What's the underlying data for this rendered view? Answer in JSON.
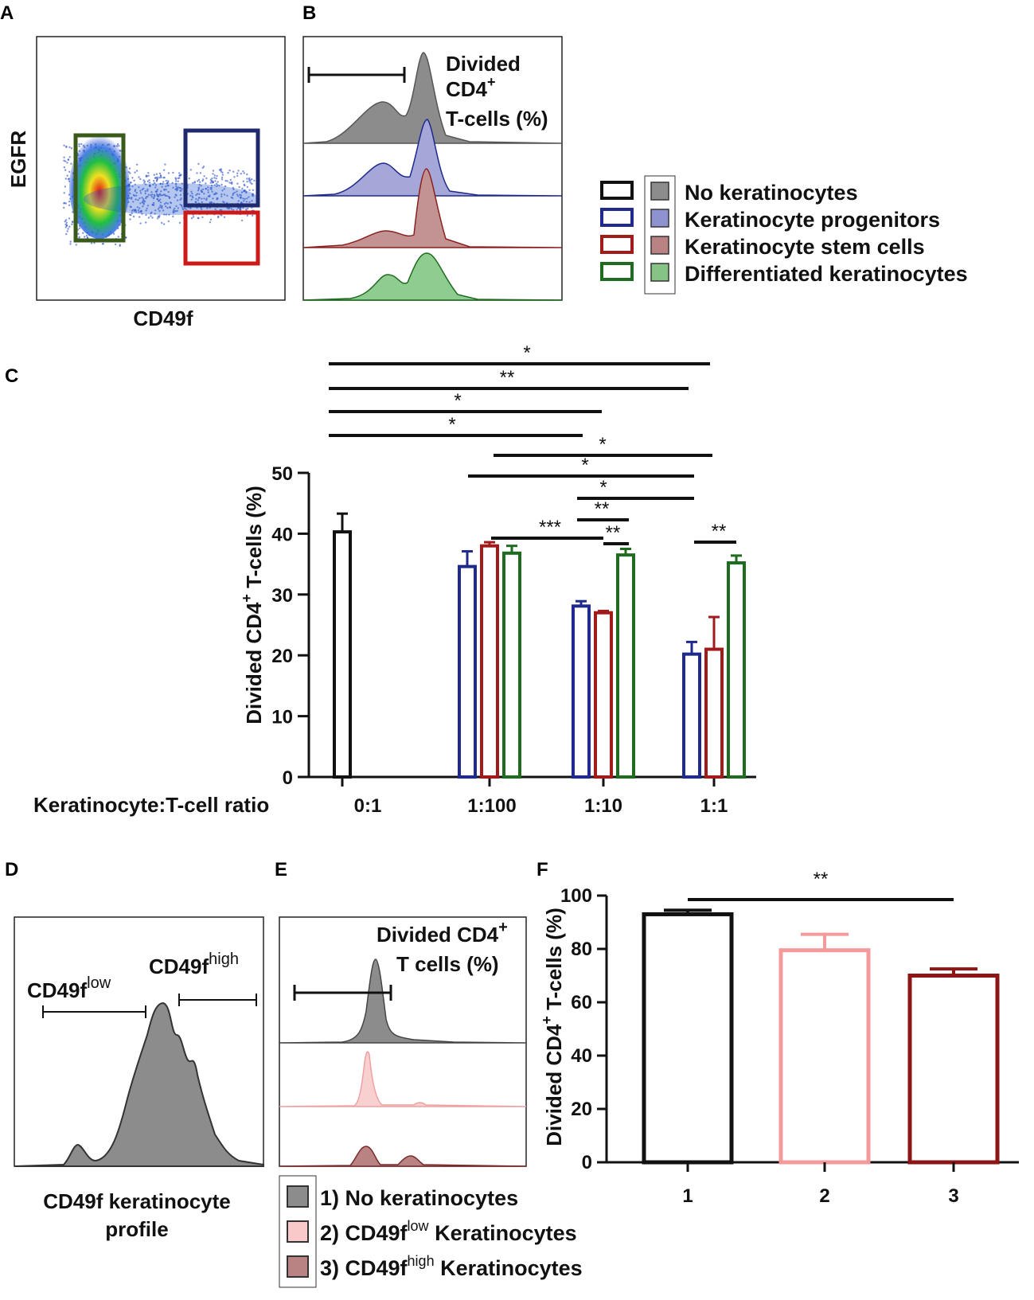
{
  "panels": {
    "a": "A",
    "b": "B",
    "c": "C",
    "d": "D",
    "e": "E",
    "f": "F"
  },
  "panel_a": {
    "y_label": "EGFR",
    "x_label": "CD49f"
  },
  "panel_b": {
    "gate_label_line1": "Divided",
    "gate_label_line2": "CD4",
    "gate_label_line2_sup": "+",
    "gate_label_line3": "T-cells (%)"
  },
  "legend_top": [
    {
      "label": "No keratinocytes",
      "color": "#111111",
      "fill": "#8c8c8c"
    },
    {
      "label": "Keratinocyte progenitors",
      "color": "#1f2a8c",
      "fill": "#8e92cf"
    },
    {
      "label": "Keratinocyte stem cells",
      "color": "#a11b1b",
      "fill": "#b98383"
    },
    {
      "label": "Differentiated keratinocytes",
      "color": "#1f6b1f",
      "fill": "#85c485"
    }
  ],
  "panel_c": {
    "ylabel_pre": "Divided CD4",
    "ylabel_sup": "+",
    "ylabel_post": " T-cells (%)",
    "xlabel": "Keratinocyte:T-cell ratio"
  },
  "panel_d": {
    "low_label": "CD49f",
    "low_sup": "low",
    "high_label": "CD49f",
    "high_sup": "high",
    "caption_line1": "CD49f keratinocyte",
    "caption_line2": "profile"
  },
  "panel_e": {
    "gate_line1": "Divided CD4",
    "gate_sup": "+",
    "gate_line2": "T cells (%)"
  },
  "legend_bottom": [
    {
      "num": "1)",
      "label": "No keratinocytes",
      "sup": "",
      "tail": "",
      "fill": "#8c8c8c"
    },
    {
      "num": "2)",
      "label": "CD49f",
      "sup": "low",
      "tail": " Keratinocytes",
      "fill": "#f9c9c9"
    },
    {
      "num": "3)",
      "label": "CD49f",
      "sup": "high",
      "tail": " Keratinocytes",
      "fill": "#b98383"
    }
  ],
  "panel_f": {
    "ylabel_pre": "Divided CD4",
    "ylabel_sup": "+",
    "ylabel_post": " T-cells (%)"
  },
  "chart_data": [
    {
      "type": "bar",
      "title": "",
      "xlabel": "Keratinocyte:T-cell ratio",
      "ylabel": "Divided CD4+ T-cells (%)",
      "ylim": [
        0,
        50
      ],
      "yticks": [
        0,
        10,
        20,
        30,
        40,
        50
      ],
      "categories": [
        "0:1",
        "1:100",
        "1:10",
        "1:1"
      ],
      "series": [
        {
          "name": "No keratinocytes",
          "color": "#111111",
          "values": [
            40.3,
            null,
            null,
            null
          ],
          "errors": [
            3.0,
            null,
            null,
            null
          ]
        },
        {
          "name": "Keratinocyte progenitors",
          "color": "#1f2a8c",
          "values": [
            null,
            34.6,
            28.1,
            20.2
          ],
          "errors": [
            null,
            2.5,
            0.8,
            2.0
          ]
        },
        {
          "name": "Keratinocyte stem cells",
          "color": "#a11b1b",
          "values": [
            null,
            38.0,
            27.0,
            21.0
          ],
          "errors": [
            null,
            0.6,
            0.3,
            5.3
          ]
        },
        {
          "name": "Differentiated keratinocytes",
          "color": "#1f6b1f",
          "values": [
            null,
            36.8,
            36.5,
            35.2
          ],
          "errors": [
            null,
            1.2,
            1.0,
            1.2
          ]
        }
      ],
      "significance": [
        {
          "label": "*"
        },
        {
          "label": "**"
        },
        {
          "label": "*"
        },
        {
          "label": "*"
        },
        {
          "label": "*"
        },
        {
          "label": "*"
        },
        {
          "label": "*"
        },
        {
          "label": "**"
        },
        {
          "label": "***"
        },
        {
          "label": "**"
        },
        {
          "label": "**"
        }
      ]
    },
    {
      "type": "bar",
      "title": "",
      "xlabel": "",
      "ylabel": "Divided CD4+ T-cells (%)",
      "ylim": [
        0,
        100
      ],
      "yticks": [
        0,
        20,
        40,
        60,
        80,
        100
      ],
      "categories": [
        "1",
        "2",
        "3"
      ],
      "values": [
        93,
        79.5,
        70
      ],
      "errors": [
        1.5,
        6,
        2.5
      ],
      "colors": [
        "#111111",
        "#f49a9a",
        "#8e1515"
      ],
      "significance": [
        {
          "label": "**"
        }
      ]
    }
  ]
}
